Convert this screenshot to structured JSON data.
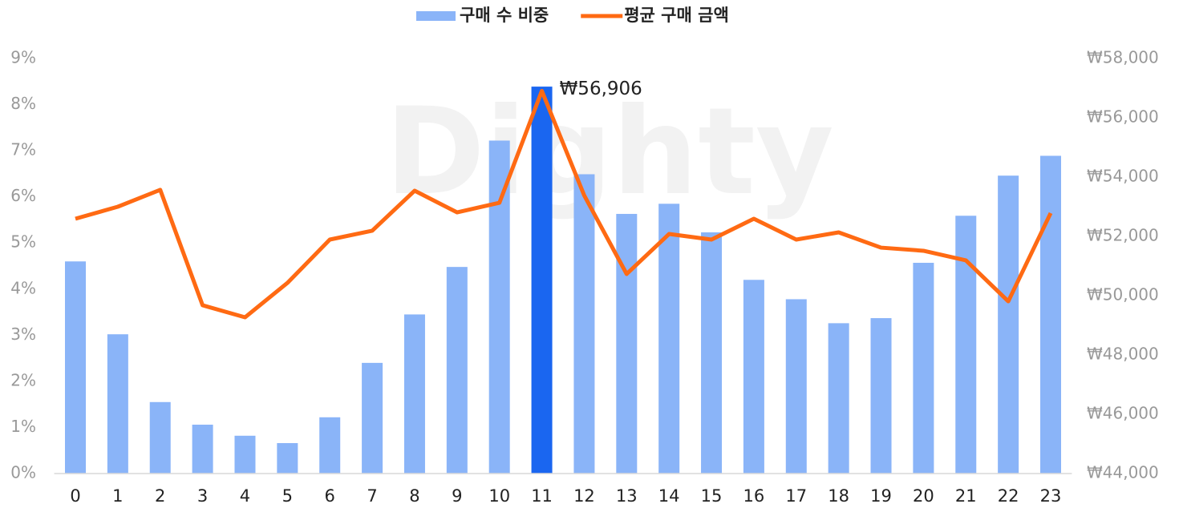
{
  "chart_data": {
    "type": "bar+line",
    "watermark": "Dighty",
    "categories": [
      "0",
      "1",
      "2",
      "3",
      "4",
      "5",
      "6",
      "7",
      "8",
      "9",
      "10",
      "11",
      "12",
      "13",
      "14",
      "15",
      "16",
      "17",
      "18",
      "19",
      "20",
      "21",
      "22",
      "23"
    ],
    "series": [
      {
        "name": "구매 수 비중",
        "type": "bar",
        "axis": "y",
        "color": "#8ab4f8",
        "colors": [
          "#8ab4f8",
          "#8ab4f8",
          "#8ab4f8",
          "#8ab4f8",
          "#8ab4f8",
          "#8ab4f8",
          "#8ab4f8",
          "#8ab4f8",
          "#8ab4f8",
          "#8ab4f8",
          "#8ab4f8",
          "#1a66f0",
          "#8ab4f8",
          "#8ab4f8",
          "#8ab4f8",
          "#8ab4f8",
          "#8ab4f8",
          "#8ab4f8",
          "#8ab4f8",
          "#8ab4f8",
          "#8ab4f8",
          "#8ab4f8",
          "#8ab4f8",
          "#8ab4f8"
        ],
        "values": [
          4.6,
          3.02,
          1.55,
          1.06,
          0.82,
          0.66,
          1.22,
          2.4,
          3.45,
          4.48,
          7.22,
          8.39,
          6.49,
          5.63,
          5.85,
          5.23,
          4.2,
          3.78,
          3.26,
          3.37,
          4.57,
          5.59,
          6.46,
          6.89
        ]
      },
      {
        "name": "평균 구매 금액",
        "type": "line",
        "axis": "y2",
        "color": "#ff6a13",
        "values": [
          52595,
          53000,
          53570,
          49676,
          49270,
          50430,
          51892,
          52190,
          53540,
          52810,
          53135,
          56906,
          53380,
          50730,
          52080,
          51892,
          52595,
          51892,
          52135,
          51620,
          51515,
          51190,
          49810,
          52785
        ],
        "value_labels": [
          null,
          null,
          null,
          null,
          null,
          null,
          null,
          null,
          null,
          null,
          null,
          "₩56,906",
          null,
          null,
          null,
          null,
          null,
          null,
          null,
          null,
          null,
          null,
          null,
          null
        ]
      }
    ],
    "ylim": [
      0,
      9
    ],
    "yticks": [
      {
        "value": 0,
        "label": "0%"
      },
      {
        "value": 1,
        "label": "1%"
      },
      {
        "value": 2,
        "label": "2%"
      },
      {
        "value": 3,
        "label": "3%"
      },
      {
        "value": 4,
        "label": "4%"
      },
      {
        "value": 5,
        "label": "5%"
      },
      {
        "value": 6,
        "label": "6%"
      },
      {
        "value": 7,
        "label": "7%"
      },
      {
        "value": 8,
        "label": "8%"
      },
      {
        "value": 9,
        "label": "9%"
      }
    ],
    "y2lim": [
      44000,
      58000
    ],
    "y2ticks": [
      {
        "value": 44000,
        "label": "₩44,000"
      },
      {
        "value": 46000,
        "label": "₩46,000"
      },
      {
        "value": 48000,
        "label": "₩48,000"
      },
      {
        "value": 50000,
        "label": "₩50,000"
      },
      {
        "value": 52000,
        "label": "₩52,000"
      },
      {
        "value": 54000,
        "label": "₩54,000"
      },
      {
        "value": 56000,
        "label": "₩56,000"
      },
      {
        "value": 58000,
        "label": "₩58,000"
      }
    ],
    "grid": false,
    "legend": "top"
  }
}
